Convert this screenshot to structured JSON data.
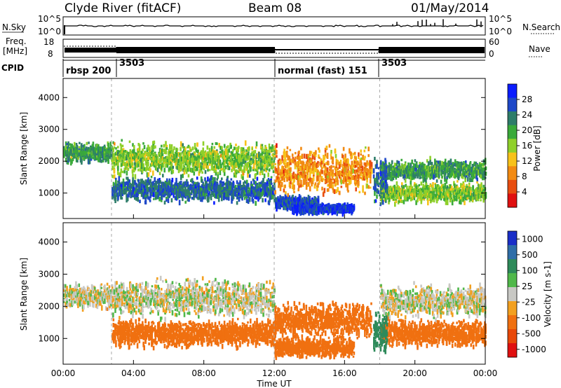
{
  "header": {
    "station": "Clyde River (fitACF)",
    "beam": "Beam 08",
    "date": "01/May/2014"
  },
  "status_panel": {
    "nsky_label": "N.Sky",
    "nsky_ticks": [
      "10^5",
      "10^0"
    ],
    "nsearch_label": "N.Search",
    "nsearch_ticks": [
      "10^5",
      "10^0"
    ],
    "freq_label_1": "Freq.",
    "freq_label_2": "[MHz]",
    "freq_ticks": [
      "18",
      "8"
    ],
    "nave_label": "Nave",
    "nave_ticks": [
      "60",
      "0"
    ],
    "cpid_label": "CPID",
    "cpid_segments": [
      {
        "label": "rbsp 200",
        "start_hr": 0.0
      },
      {
        "label": "3503",
        "start_hr": 2.75
      },
      {
        "label": "normal (fast) 151",
        "start_hr": 12.0
      },
      {
        "label": "3503",
        "start_hr": 18.0
      }
    ]
  },
  "chart_data": [
    {
      "type": "heatmap",
      "name": "power",
      "ylabel": "Slant Range [km]",
      "ylim": [
        200,
        4600
      ],
      "yticks": [
        "1000",
        "2000",
        "3000",
        "4000"
      ],
      "xlim_hr": [
        0,
        24
      ],
      "colorbar_label": "Power [dB]",
      "colorbar_ticks": [
        "4",
        "8",
        "12",
        "16",
        "20",
        "24",
        "28"
      ],
      "colorbar_colors": [
        "#0a1cff",
        "#1e48c8",
        "#2e7d6a",
        "#3aaa3a",
        "#8fd02a",
        "#f7c21a",
        "#f28a12",
        "#e84d10",
        "#e01010"
      ],
      "bands": [
        {
          "t0": 0.0,
          "t1": 2.75,
          "r": 2250,
          "w": 380,
          "p": 20
        },
        {
          "t0": 2.75,
          "t1": 12.0,
          "r": 2050,
          "w": 650,
          "p": 16
        },
        {
          "t0": 2.75,
          "t1": 12.0,
          "r": 1100,
          "w": 480,
          "p": 24
        },
        {
          "t0": 12.0,
          "t1": 14.5,
          "r": 700,
          "w": 250,
          "p": 26
        },
        {
          "t0": 13.0,
          "t1": 16.5,
          "r": 500,
          "w": 180,
          "p": 28
        },
        {
          "t0": 12.0,
          "t1": 17.5,
          "r": 1700,
          "w": 900,
          "p": 8
        },
        {
          "t0": 18.0,
          "t1": 24.0,
          "r": 1700,
          "w": 420,
          "p": 20
        },
        {
          "t0": 18.0,
          "t1": 24.0,
          "r": 1000,
          "w": 380,
          "p": 16
        },
        {
          "t0": 17.6,
          "t1": 18.4,
          "r": 1300,
          "w": 900,
          "p": 24
        }
      ]
    },
    {
      "type": "heatmap",
      "name": "velocity",
      "ylabel": "Slant Range [km]",
      "ylim": [
        200,
        4600
      ],
      "yticks": [
        "1000",
        "2000",
        "3000",
        "4000"
      ],
      "xlabel": "Time UT",
      "xlim_hr": [
        0,
        24
      ],
      "xticks": [
        "00:00",
        "04:00",
        "08:00",
        "12:00",
        "16:00",
        "20:00",
        "00:00"
      ],
      "colorbar_label": "Velocity [m s-1]",
      "colorbar_ticks": [
        "1000",
        "500",
        "100",
        "25",
        "-25",
        "-100",
        "-500",
        "-1000"
      ],
      "colorbar_colors": [
        "#1a2fc8",
        "#2f6ea8",
        "#2e8a5a",
        "#50b84a",
        "#c8c8c4",
        "#f2a020",
        "#f07010",
        "#e84808",
        "#e01010"
      ],
      "bands": [
        {
          "t0": 0.0,
          "t1": 2.75,
          "r": 2300,
          "w": 500,
          "v": 0
        },
        {
          "t0": 2.75,
          "t1": 12.0,
          "r": 2250,
          "w": 700,
          "v": 0
        },
        {
          "t0": 2.75,
          "t1": 12.0,
          "r": 1150,
          "w": 520,
          "v": -300
        },
        {
          "t0": 12.0,
          "t1": 16.5,
          "r": 700,
          "w": 380,
          "v": -400
        },
        {
          "t0": 12.0,
          "t1": 17.5,
          "r": 1550,
          "w": 700,
          "v": -200
        },
        {
          "t0": 18.0,
          "t1": 24.0,
          "r": 2150,
          "w": 600,
          "v": 0
        },
        {
          "t0": 18.0,
          "t1": 24.0,
          "r": 1150,
          "w": 520,
          "v": -300
        },
        {
          "t0": 17.6,
          "t1": 18.4,
          "r": 1200,
          "w": 800,
          "v": 300
        }
      ]
    }
  ]
}
